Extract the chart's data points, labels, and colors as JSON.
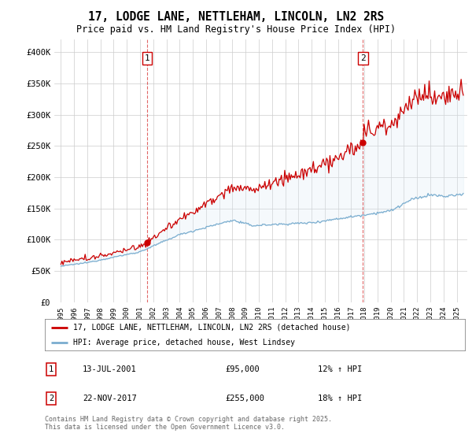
{
  "title": "17, LODGE LANE, NETTLEHAM, LINCOLN, LN2 2RS",
  "subtitle": "Price paid vs. HM Land Registry's House Price Index (HPI)",
  "legend_line1": "17, LODGE LANE, NETTLEHAM, LINCOLN, LN2 2RS (detached house)",
  "legend_line2": "HPI: Average price, detached house, West Lindsey",
  "footnote": "Contains HM Land Registry data © Crown copyright and database right 2025.\nThis data is licensed under the Open Government Licence v3.0.",
  "sale1_label": "1",
  "sale1_date": "13-JUL-2001",
  "sale1_price": "£95,000",
  "sale1_hpi": "12% ↑ HPI",
  "sale2_label": "2",
  "sale2_date": "22-NOV-2017",
  "sale2_price": "£255,000",
  "sale2_hpi": "18% ↑ HPI",
  "sale1_x": 2001.53,
  "sale1_y": 95000,
  "sale2_x": 2017.9,
  "sale2_y": 255000,
  "red_color": "#cc0000",
  "blue_color": "#7aadcf",
  "fill_color": "#daeaf5",
  "background_color": "#ffffff",
  "grid_color": "#cccccc",
  "ylim": [
    0,
    420000
  ],
  "xlim_start": 1994.5,
  "xlim_end": 2025.8
}
